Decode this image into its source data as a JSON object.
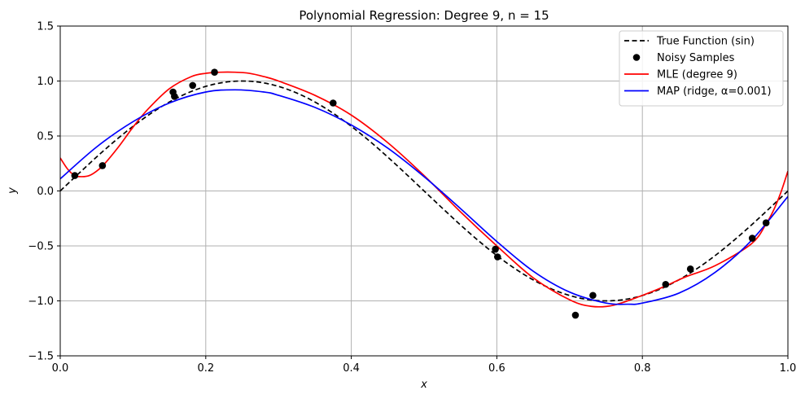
{
  "chart_data": {
    "type": "line",
    "title": "Polynomial Regression: Degree 9, n = 15",
    "xlabel": "x",
    "ylabel": "y",
    "xlim": [
      0,
      1
    ],
    "ylim": [
      -1.5,
      1.5
    ],
    "xticks": [
      "0.0",
      "0.2",
      "0.4",
      "0.6",
      "0.8",
      "1.0"
    ],
    "yticks": [
      "−1.5",
      "−1.0",
      "−0.5",
      "0.0",
      "0.5",
      "1.0",
      "1.5"
    ],
    "grid": true,
    "legend_position": "top-right",
    "series": [
      {
        "name": "True Function (sin)",
        "kind": "line",
        "style": "dashed",
        "color": "#000000",
        "x": [
          0,
          0.025,
          0.05,
          0.075,
          0.1,
          0.125,
          0.15,
          0.175,
          0.2,
          0.225,
          0.25,
          0.275,
          0.3,
          0.325,
          0.35,
          0.375,
          0.4,
          0.425,
          0.45,
          0.475,
          0.5,
          0.525,
          0.55,
          0.575,
          0.6,
          0.625,
          0.65,
          0.675,
          0.7,
          0.725,
          0.75,
          0.775,
          0.8,
          0.825,
          0.85,
          0.875,
          0.9,
          0.925,
          0.95,
          0.975,
          1.0
        ],
        "y": [
          0,
          0.156,
          0.309,
          0.454,
          0.588,
          0.707,
          0.809,
          0.891,
          0.951,
          0.988,
          1.0,
          0.988,
          0.951,
          0.891,
          0.809,
          0.707,
          0.588,
          0.454,
          0.309,
          0.156,
          0,
          -0.156,
          -0.309,
          -0.454,
          -0.588,
          -0.707,
          -0.809,
          -0.891,
          -0.951,
          -0.988,
          -1.0,
          -0.988,
          -0.951,
          -0.891,
          -0.809,
          -0.707,
          -0.588,
          -0.454,
          -0.309,
          -0.156,
          0
        ]
      },
      {
        "name": "Noisy Samples",
        "kind": "scatter",
        "color": "#000000",
        "x": [
          0.02,
          0.058,
          0.155,
          0.157,
          0.182,
          0.212,
          0.375,
          0.598,
          0.601,
          0.708,
          0.732,
          0.832,
          0.866,
          0.951,
          0.97
        ],
        "y": [
          0.14,
          0.23,
          0.9,
          0.86,
          0.96,
          1.08,
          0.8,
          -0.53,
          -0.6,
          -1.13,
          -0.95,
          -0.85,
          -0.71,
          -0.43,
          -0.29
        ]
      },
      {
        "name": "MLE (degree 9)",
        "kind": "line",
        "style": "solid",
        "color": "#ff0000",
        "x": [
          0,
          0.01,
          0.02,
          0.03,
          0.04,
          0.05,
          0.06,
          0.08,
          0.1,
          0.12,
          0.15,
          0.18,
          0.2,
          0.22,
          0.24,
          0.26,
          0.28,
          0.3,
          0.35,
          0.4,
          0.45,
          0.5,
          0.55,
          0.6,
          0.65,
          0.7,
          0.73,
          0.76,
          0.8,
          0.83,
          0.86,
          0.9,
          0.95,
          0.97,
          0.98,
          0.99,
          1.0
        ],
        "y": [
          0.3,
          0.2,
          0.14,
          0.13,
          0.14,
          0.18,
          0.24,
          0.4,
          0.58,
          0.74,
          0.93,
          1.04,
          1.07,
          1.08,
          1.08,
          1.07,
          1.04,
          1.0,
          0.87,
          0.69,
          0.44,
          0.14,
          -0.19,
          -0.5,
          -0.79,
          -0.99,
          -1.05,
          -1.04,
          -0.95,
          -0.87,
          -0.78,
          -0.68,
          -0.48,
          -0.3,
          -0.18,
          -0.02,
          0.18
        ]
      },
      {
        "name": "MAP (ridge, α=0.001)",
        "kind": "line",
        "style": "solid",
        "color": "#0000ff",
        "x": [
          0,
          0.05,
          0.1,
          0.15,
          0.2,
          0.24,
          0.28,
          0.3,
          0.35,
          0.4,
          0.45,
          0.5,
          0.55,
          0.6,
          0.65,
          0.7,
          0.75,
          0.78,
          0.8,
          0.85,
          0.9,
          0.95,
          1.0
        ],
        "y": [
          0.11,
          0.4,
          0.63,
          0.8,
          0.9,
          0.92,
          0.9,
          0.87,
          0.76,
          0.6,
          0.39,
          0.13,
          -0.16,
          -0.46,
          -0.73,
          -0.92,
          -1.02,
          -1.03,
          -1.02,
          -0.93,
          -0.74,
          -0.45,
          -0.05
        ]
      }
    ]
  }
}
